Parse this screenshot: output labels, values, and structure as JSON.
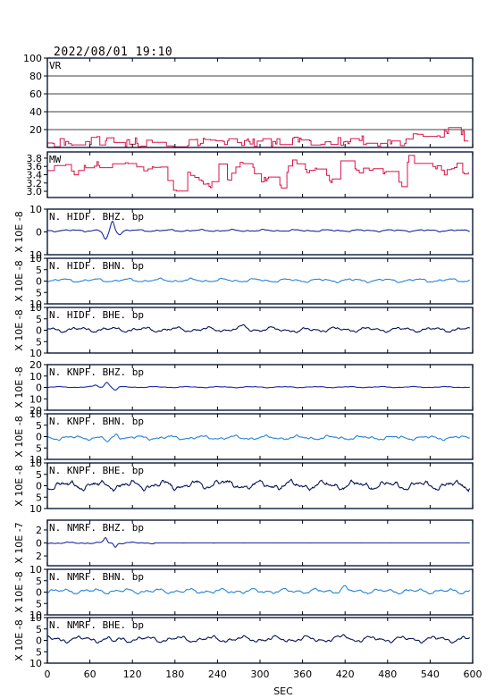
{
  "title": "2022/08/01  19:10",
  "chart_data": {
    "type": "line",
    "xlabel": "SEC",
    "xlim": [
      0,
      600
    ],
    "xticks": [
      0,
      60,
      120,
      180,
      240,
      300,
      360,
      420,
      480,
      540,
      600
    ],
    "panels": [
      {
        "name": "VR",
        "label": "VR",
        "ylabel": "",
        "ylim": [
          0,
          100
        ],
        "yticks": [
          100,
          80,
          60,
          40,
          20
        ],
        "grid": true,
        "color": "#d8154a",
        "style": "step",
        "baseline": 6,
        "amplitude": 3,
        "series": {
          "x": [
            0,
            30,
            60,
            90,
            120,
            150,
            180,
            210,
            240,
            270,
            300,
            330,
            360,
            390,
            420,
            450,
            480,
            510,
            540,
            570,
            590
          ],
          "y": [
            5,
            6,
            9,
            7,
            6,
            5,
            6,
            5,
            9,
            7,
            6,
            8,
            7,
            5,
            6,
            8,
            5,
            10,
            14,
            18,
            12
          ]
        }
      },
      {
        "name": "MW",
        "label": "MW",
        "ylabel": "",
        "ylim": [
          2.85,
          3.95
        ],
        "yticks": [
          3.8,
          3.6,
          3.4,
          3.2,
          3.0
        ],
        "ytick_labels": [
          "3.8",
          "3.6",
          "3.4",
          "3.2",
          "3.0"
        ],
        "grid": false,
        "color": "#d8154a",
        "style": "step",
        "series": {
          "x": [
            0,
            20,
            40,
            60,
            80,
            100,
            120,
            140,
            160,
            170,
            180,
            195,
            210,
            230,
            240,
            255,
            270,
            290,
            300,
            320,
            330,
            345,
            360,
            380,
            400,
            420,
            440,
            460,
            470,
            480,
            500,
            510,
            520,
            540,
            560,
            580,
            590
          ],
          "y": [
            3.5,
            3.75,
            3.4,
            3.7,
            3.6,
            3.8,
            3.65,
            3.5,
            3.6,
            3.3,
            2.95,
            3.5,
            3.3,
            3.15,
            3.75,
            3.3,
            3.7,
            3.55,
            3.2,
            3.45,
            3.05,
            3.8,
            3.45,
            3.6,
            3.25,
            3.85,
            3.5,
            3.55,
            3.3,
            3.6,
            3.1,
            3.85,
            3.6,
            3.7,
            3.45,
            3.65,
            3.4
          ]
        }
      },
      {
        "name": "N.HIDF.BHZ.bp",
        "label": "N. HIDF. BHZ. bp",
        "ylabel": "X 10E -8",
        "ylim": [
          -10,
          10
        ],
        "yticks": [
          10,
          0,
          -10
        ],
        "ytick_labels": [
          "10",
          "0",
          "10"
        ],
        "grid": false,
        "color": "#1c2aa0",
        "baseline": 0.6,
        "events": [
          {
            "t": 82,
            "a": -4.0,
            "w": 4.5
          },
          {
            "t": 92,
            "a": 4.0,
            "w": 3.5
          },
          {
            "t": 102,
            "a": -1.5,
            "w": 4
          }
        ],
        "amplitude": 0.4
      },
      {
        "name": "N.HIDF.BHN.bp",
        "label": "N. HIDF. BHN. bp",
        "ylabel": "X 10E -8",
        "ylim": [
          -10,
          10
        ],
        "yticks": [
          10,
          5,
          0,
          -5,
          -10
        ],
        "ytick_labels": [
          "10",
          "5",
          "0",
          "5",
          "10"
        ],
        "grid": false,
        "color": "#2a84d6",
        "baseline": 0.3,
        "amplitude": 0.6,
        "events": []
      },
      {
        "name": "N.HIDF.BHE.bp",
        "label": "N. HIDF. BHE. bp",
        "ylabel": "X 10E -8",
        "ylim": [
          -10,
          10
        ],
        "yticks": [
          10,
          5,
          0,
          -5,
          -10
        ],
        "ytick_labels": [
          "10",
          "5",
          "0",
          "5",
          "10"
        ],
        "grid": false,
        "color": "#0b1658",
        "baseline": 0.3,
        "amplitude": 0.9,
        "events": [
          {
            "t": 278,
            "a": 1.5,
            "w": 5
          },
          {
            "t": 355,
            "a": -1.4,
            "w": 5
          }
        ]
      },
      {
        "name": "N.KNPF.BHZ.bp",
        "label": "N. KNPF. BHZ. bp",
        "ylabel": "X 10E -8",
        "ylim": [
          -20,
          20
        ],
        "yticks": [
          20,
          10,
          0,
          -10,
          -20
        ],
        "ytick_labels": [
          "20",
          "10",
          "0",
          "10",
          "20"
        ],
        "grid": false,
        "color": "#1c2aa0",
        "baseline": 0.3,
        "amplitude": 0.4,
        "events": [
          {
            "t": 68,
            "a": 1.5,
            "w": 4
          },
          {
            "t": 84,
            "a": 4.5,
            "w": 4
          },
          {
            "t": 96,
            "a": -2.5,
            "w": 4
          }
        ]
      },
      {
        "name": "N.KNPF.BHN.bp",
        "label": "N. KNPF. BHN. bp",
        "ylabel": "X 10E -8",
        "ylim": [
          -10,
          10
        ],
        "yticks": [
          10,
          5,
          0,
          -5,
          -10
        ],
        "ytick_labels": [
          "10",
          "5",
          "0",
          "5",
          "10"
        ],
        "grid": false,
        "color": "#2a84d6",
        "baseline": -0.5,
        "amplitude": 0.9,
        "events": [
          {
            "t": 85,
            "a": -2.5,
            "w": 4
          },
          {
            "t": 98,
            "a": 2.0,
            "w": 4
          }
        ]
      },
      {
        "name": "N.KNPF.BHE.bp",
        "label": "N. KNPF. BHE. bp",
        "ylabel": "X 10E -8",
        "ylim": [
          -10,
          10
        ],
        "yticks": [
          10,
          5,
          0,
          -5,
          -10
        ],
        "ytick_labels": [
          "10",
          "5",
          "0",
          "5",
          "10"
        ],
        "grid": false,
        "color": "#0b1658",
        "baseline": 0.2,
        "amplitude": 2.2,
        "events": [
          {
            "t": 240,
            "a": 2.5,
            "w": 6
          }
        ]
      },
      {
        "name": "N.NMRF.BHZ.bp",
        "label": "N. NMRF. BHZ. bp",
        "ylabel": "X 10E -7",
        "ylim": [
          -3.5,
          3.5
        ],
        "yticks": [
          2,
          0,
          -2
        ],
        "ytick_labels": [
          "2",
          "0",
          "2"
        ],
        "grid": false,
        "color": "#1c2aa0",
        "baseline": 0.0,
        "amplitude": 0.12,
        "decay_after": 150,
        "events": [
          {
            "t": 82,
            "a": 0.8,
            "w": 3
          },
          {
            "t": 96,
            "a": -0.6,
            "w": 3
          }
        ]
      },
      {
        "name": "N.NMRF.BHN.bp",
        "label": "N. NMRF. BHN. bp",
        "ylabel": "X 10E -8",
        "ylim": [
          -10,
          10
        ],
        "yticks": [
          10,
          5,
          0,
          -5,
          -10
        ],
        "ytick_labels": [
          "10",
          "5",
          "0",
          "5",
          "10"
        ],
        "grid": false,
        "color": "#2a84d6",
        "baseline": 0.4,
        "amplitude": 1.0,
        "events": [
          {
            "t": 418,
            "a": 1.6,
            "w": 5
          }
        ]
      },
      {
        "name": "N.NMRF.BHE.bp",
        "label": "N. NMRF. BHE. bp",
        "ylabel": "X 10E -8",
        "ylim": [
          -10,
          10
        ],
        "yticks": [
          10,
          5,
          0,
          -5,
          -10
        ],
        "ytick_labels": [
          "10",
          "5",
          "0",
          "5",
          "10"
        ],
        "grid": false,
        "color": "#0b1658",
        "baseline": 0.5,
        "amplitude": 1.1,
        "events": [
          {
            "t": 420,
            "a": 1.6,
            "w": 5
          },
          {
            "t": 95,
            "a": -1.4,
            "w": 5
          }
        ]
      }
    ]
  }
}
